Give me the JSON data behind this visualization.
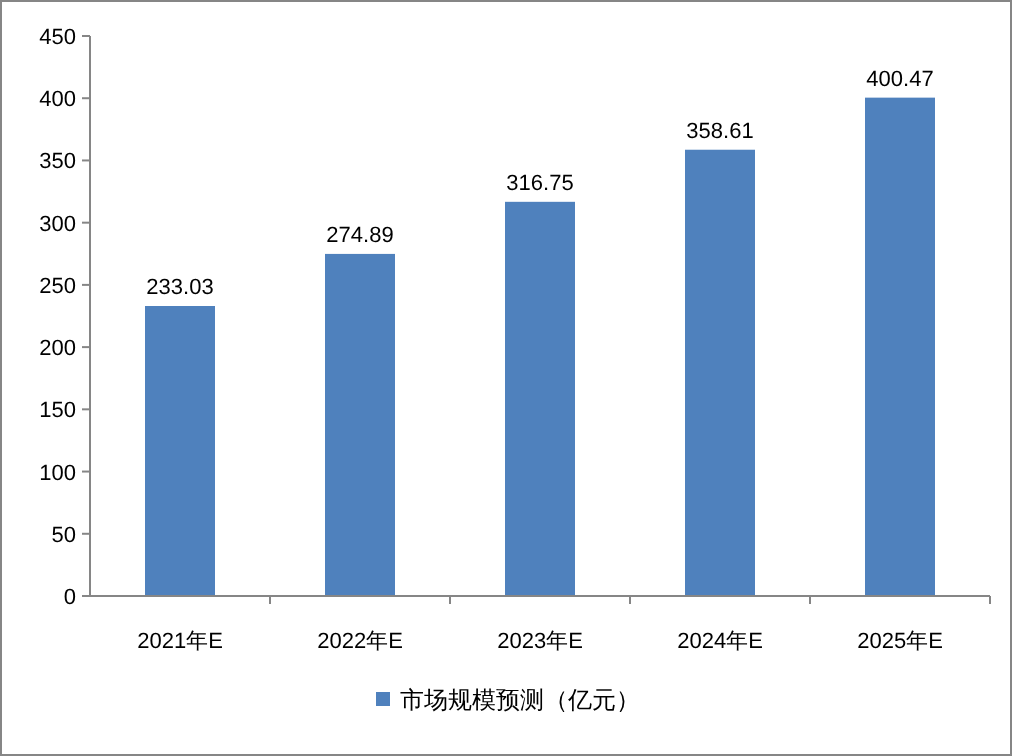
{
  "chart_data": {
    "type": "bar",
    "categories": [
      "2021年E",
      "2022年E",
      "2023年E",
      "2024年E",
      "2025年E"
    ],
    "series": [
      {
        "name": "市场规模预测（亿元）",
        "color": "#4f81bd",
        "values": [
          233.03,
          274.89,
          316.75,
          358.61,
          400.47
        ]
      }
    ],
    "ylim": [
      0,
      450
    ],
    "yticks": [
      0,
      50,
      100,
      150,
      200,
      250,
      300,
      350,
      400,
      450
    ],
    "data_labels": true,
    "legend": "bottom",
    "grid": false
  }
}
